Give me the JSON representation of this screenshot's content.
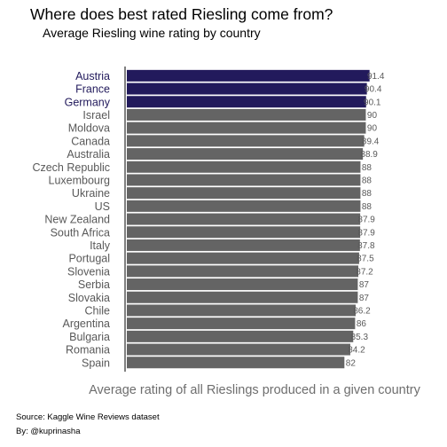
{
  "title": "Where does best rated Riesling come from?",
  "subtitle": "Average Riesling wine rating by country",
  "footer": {
    "source": "Source: Kaggle Wine Reviews dataset",
    "byline": "By: @kuprinasha"
  },
  "colors": {
    "highlight": "#221a5c",
    "default": "#646464",
    "highlight_label": "#221a5c",
    "default_label": "#595959",
    "value_label": "#595959",
    "axis": "#000000"
  },
  "chart_data": {
    "type": "bar",
    "orientation": "horizontal",
    "xlabel": "Average rating of all Rieslings produced in a given country",
    "ylabel": "",
    "categories": [
      "Austria",
      "France",
      "Germany",
      "Israel",
      "Moldova",
      "Canada",
      "Australia",
      "Czech Republic",
      "Luxembourg",
      "Ukraine",
      "US",
      "New Zealand",
      "South Africa",
      "Italy",
      "Portugal",
      "Slovenia",
      "Serbia",
      "Slovakia",
      "Chile",
      "Argentina",
      "Bulgaria",
      "Romania",
      "Spain"
    ],
    "values": [
      91.4,
      90.4,
      90.1,
      90,
      90,
      89.4,
      88.9,
      88,
      88,
      88,
      88,
      87.9,
      87.9,
      87.8,
      87.5,
      87.2,
      87,
      87,
      86.2,
      86,
      85.3,
      84.2,
      82
    ],
    "value_labels": [
      "91.4",
      "90.4",
      "90.1",
      "90",
      "90",
      "89.4",
      "88.9",
      "88",
      "88",
      "88",
      "88",
      "87.9",
      "87.9",
      "87.8",
      "87.5",
      "87.2",
      "87",
      "87",
      "86.2",
      "86",
      "85.3",
      "84.2",
      "82"
    ],
    "highlighted": [
      "Austria",
      "France",
      "Germany"
    ],
    "xlim": [
      0,
      92.5
    ],
    "grid": false,
    "legend": "none",
    "value_labels_position": "inside-end"
  }
}
